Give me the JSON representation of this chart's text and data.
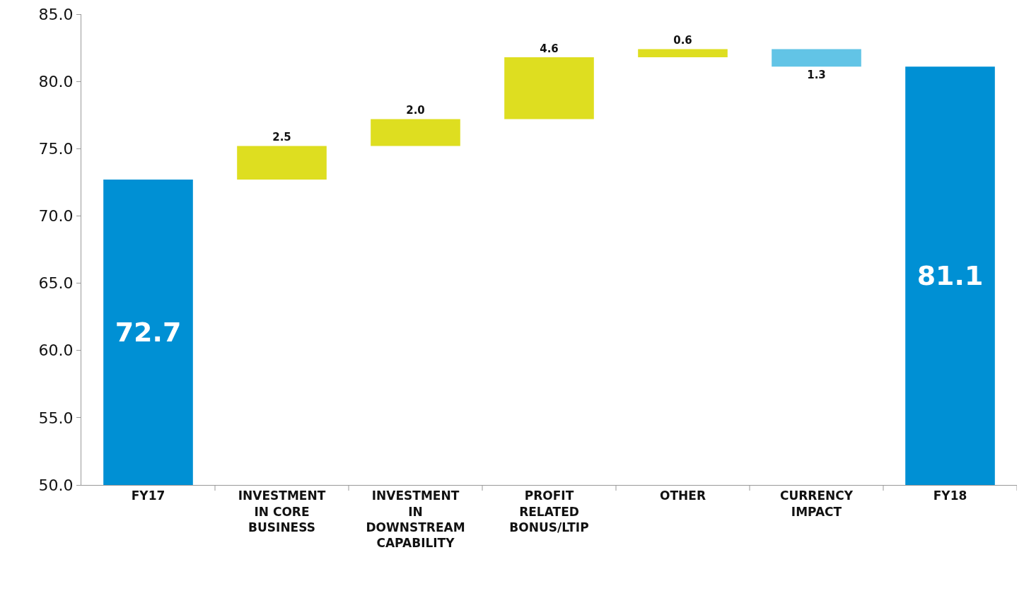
{
  "chart_data": {
    "type": "bar",
    "categories": [
      "FY17",
      "INVESTMENT IN CORE BUSINESS",
      "INVESTMENT IN DOWNSTREAM CAPABILITY",
      "PROFIT RELATED BONUS/LTIP",
      "OTHER",
      "CURRENCY IMPACT",
      "FY18"
    ],
    "values": [
      72.7,
      2.5,
      2.0,
      4.6,
      0.6,
      -1.3,
      81.1
    ],
    "base": [
      null,
      72.7,
      75.2,
      77.2,
      81.8,
      82.4,
      null
    ],
    "colors": [
      "#0090d4",
      "#dede20",
      "#dede20",
      "#dede20",
      "#dede20",
      "#62c4e6",
      "#0090d4"
    ],
    "value_labels": [
      "72.7",
      "2.5",
      "2.0",
      "4.6",
      "0.6",
      "1.3",
      "81.1"
    ],
    "ylim": [
      50,
      85
    ],
    "yticks": [
      {
        "value": 50,
        "label": "50.0"
      },
      {
        "value": 55,
        "label": "55.0"
      },
      {
        "value": 60,
        "label": "60.0"
      },
      {
        "value": 65,
        "label": "65.0"
      },
      {
        "value": 70,
        "label": "70.0"
      },
      {
        "value": 75,
        "label": "75.0"
      },
      {
        "value": 80,
        "label": "80.0"
      },
      {
        "value": 85,
        "label": "85.0"
      }
    ],
    "grid": false
  }
}
